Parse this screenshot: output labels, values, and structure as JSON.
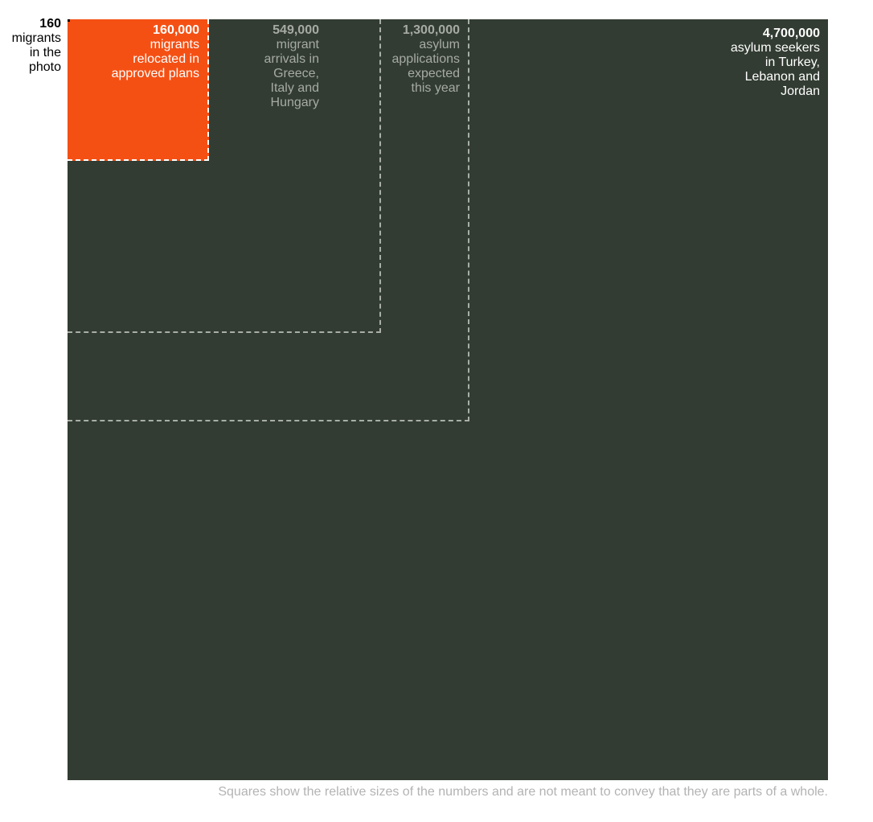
{
  "colors": {
    "big_square": "#323c32",
    "relocated": "#f55014",
    "dashed_outline": "#a9aea6",
    "muted_label": "#a6aba3",
    "note_text": "#b3b3b3"
  },
  "chart_data": {
    "type": "proportional-squares",
    "title": "",
    "items": [
      {
        "value": 160,
        "value_label": "160",
        "description": "migrants in the photo",
        "style": "filled-black"
      },
      {
        "value": 160000,
        "value_label": "160,000",
        "description": "migrants relocated in approved plans",
        "style": "filled-orange"
      },
      {
        "value": 549000,
        "value_label": "549,000",
        "description": "migrant arrivals in Greece, Italy and Hungary",
        "style": "dashed-outline"
      },
      {
        "value": 1300000,
        "value_label": "1,300,000",
        "description": "asylum applications expected this year",
        "style": "dashed-outline"
      },
      {
        "value": 4700000,
        "value_label": "4,700,000",
        "description": "asylum seekers in Turkey, Lebanon and Jordan",
        "style": "filled-dark"
      }
    ],
    "note": "Squares show the relative sizes of the numbers and are not meant to convey that they are parts of a whole."
  }
}
